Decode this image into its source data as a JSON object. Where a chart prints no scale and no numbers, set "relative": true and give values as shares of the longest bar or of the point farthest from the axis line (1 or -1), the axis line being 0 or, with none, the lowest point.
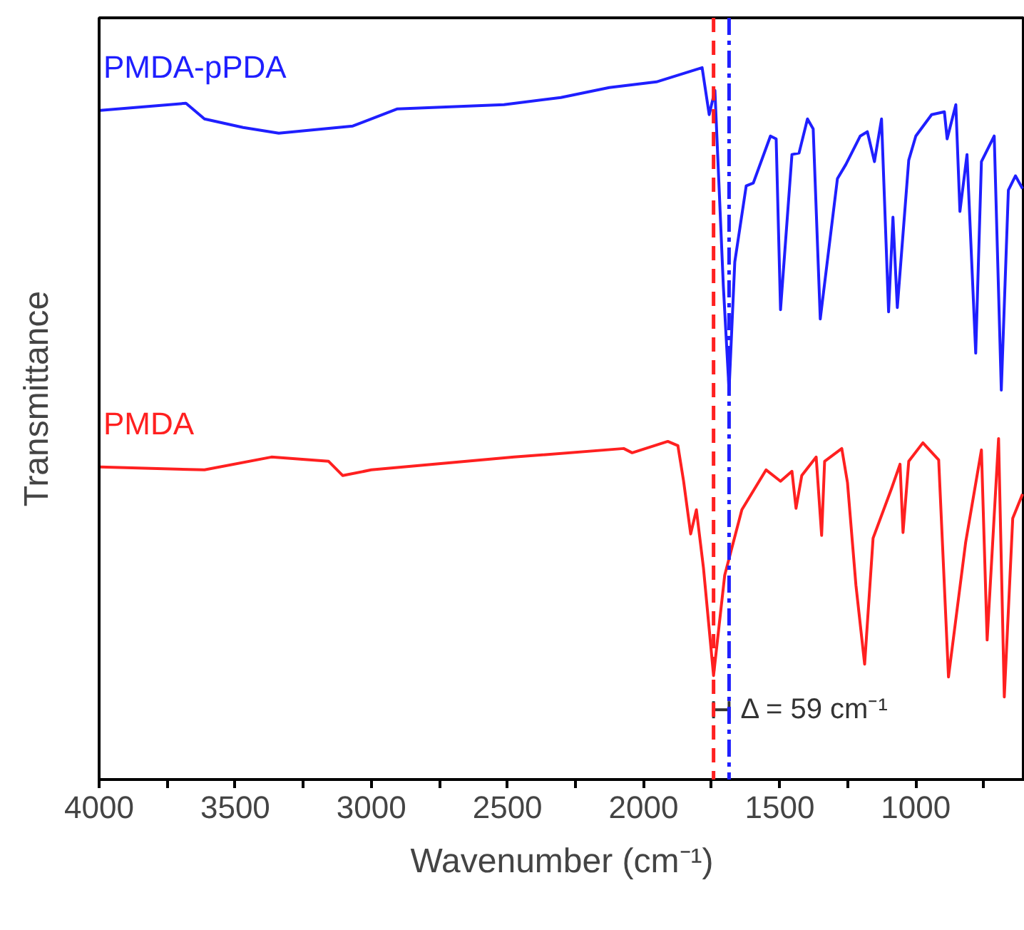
{
  "chart_data": {
    "type": "line",
    "relative": true,
    "xlabel": "Wavenumber (cm⁻¹)",
    "ylabel": "Transmittance",
    "xlim": [
      4000,
      600
    ],
    "xticks": [
      4000,
      {
        "value": 3750,
        "label": null
      },
      3500,
      {
        "value": 3250,
        "label": null
      },
      3000,
      {
        "value": 2750,
        "label": null
      },
      2500,
      {
        "value": 2250,
        "label": null
      },
      2000,
      {
        "value": 1750,
        "label": null
      },
      1500,
      {
        "value": 1250,
        "label": null
      },
      1000,
      {
        "value": 750,
        "label": null
      }
    ],
    "tick_labels": "x",
    "grid": false,
    "line_style": "solid",
    "marker": "none",
    "series": [
      {
        "name": "PMDA-pPDA",
        "color": "#1f1fff",
        "x": [
          3995,
          3681,
          3613,
          3471,
          3340,
          3068,
          2906,
          2513,
          2304,
          2126,
          1953,
          1785,
          1759,
          1738,
          1707,
          1686,
          1665,
          1623,
          1597,
          1534,
          1513,
          1497,
          1455,
          1429,
          1398,
          1377,
          1351,
          1288,
          1257,
          1204,
          1178,
          1152,
          1126,
          1100,
          1084,
          1068,
          1026,
          1000,
          942,
          895,
          885,
          853,
          838,
          812,
          780,
          759,
          712,
          686,
          660,
          634,
          608
        ],
        "values": [
          0.94,
          0.95,
          0.928,
          0.916,
          0.908,
          0.918,
          0.942,
          0.948,
          0.958,
          0.972,
          0.98,
          1.0,
          0.934,
          0.968,
          0.693,
          0.547,
          0.727,
          0.834,
          0.838,
          0.904,
          0.9,
          0.66,
          0.878,
          0.88,
          0.928,
          0.914,
          0.647,
          0.844,
          0.864,
          0.904,
          0.91,
          0.868,
          0.928,
          0.657,
          0.79,
          0.663,
          0.87,
          0.904,
          0.934,
          0.938,
          0.9,
          0.948,
          0.798,
          0.878,
          0.599,
          0.868,
          0.904,
          0.547,
          0.828,
          0.848,
          0.83
        ]
      },
      {
        "name": "PMDA",
        "color": "#ff2020",
        "x": [
          3995,
          3613,
          3367,
          3157,
          3105,
          3000,
          2476,
          2073,
          2042,
          1911,
          1874,
          1853,
          1827,
          1806,
          1780,
          1743,
          1702,
          1639,
          1550,
          1497,
          1455,
          1440,
          1419,
          1366,
          1346,
          1335,
          1272,
          1251,
          1220,
          1188,
          1157,
          1089,
          1058,
          1047,
          1026,
          974,
          916,
          880,
          817,
          759,
          738,
          696,
          675,
          644,
          608
        ],
        "values": [
          0.439,
          0.435,
          0.453,
          0.447,
          0.427,
          0.435,
          0.453,
          0.465,
          0.459,
          0.475,
          0.469,
          0.419,
          0.345,
          0.379,
          0.297,
          0.146,
          0.287,
          0.379,
          0.435,
          0.419,
          0.433,
          0.381,
          0.427,
          0.453,
          0.343,
          0.447,
          0.465,
          0.417,
          0.273,
          0.162,
          0.339,
          0.409,
          0.443,
          0.347,
          0.447,
          0.473,
          0.449,
          0.144,
          0.333,
          0.463,
          0.196,
          0.479,
          0.116,
          0.367,
          0.401
        ]
      }
    ],
    "ref_lines": [
      {
        "axis": "x",
        "value": 1743,
        "color": "#ff2020",
        "line_style": "dashed"
      },
      {
        "axis": "x",
        "value": 1686,
        "color": "#1f1fff",
        "line_style": "dashdot"
      }
    ],
    "annotations": [
      {
        "text": "Δ = 59 cm⁻¹",
        "x": 1686,
        "y": 0.098
      }
    ]
  }
}
